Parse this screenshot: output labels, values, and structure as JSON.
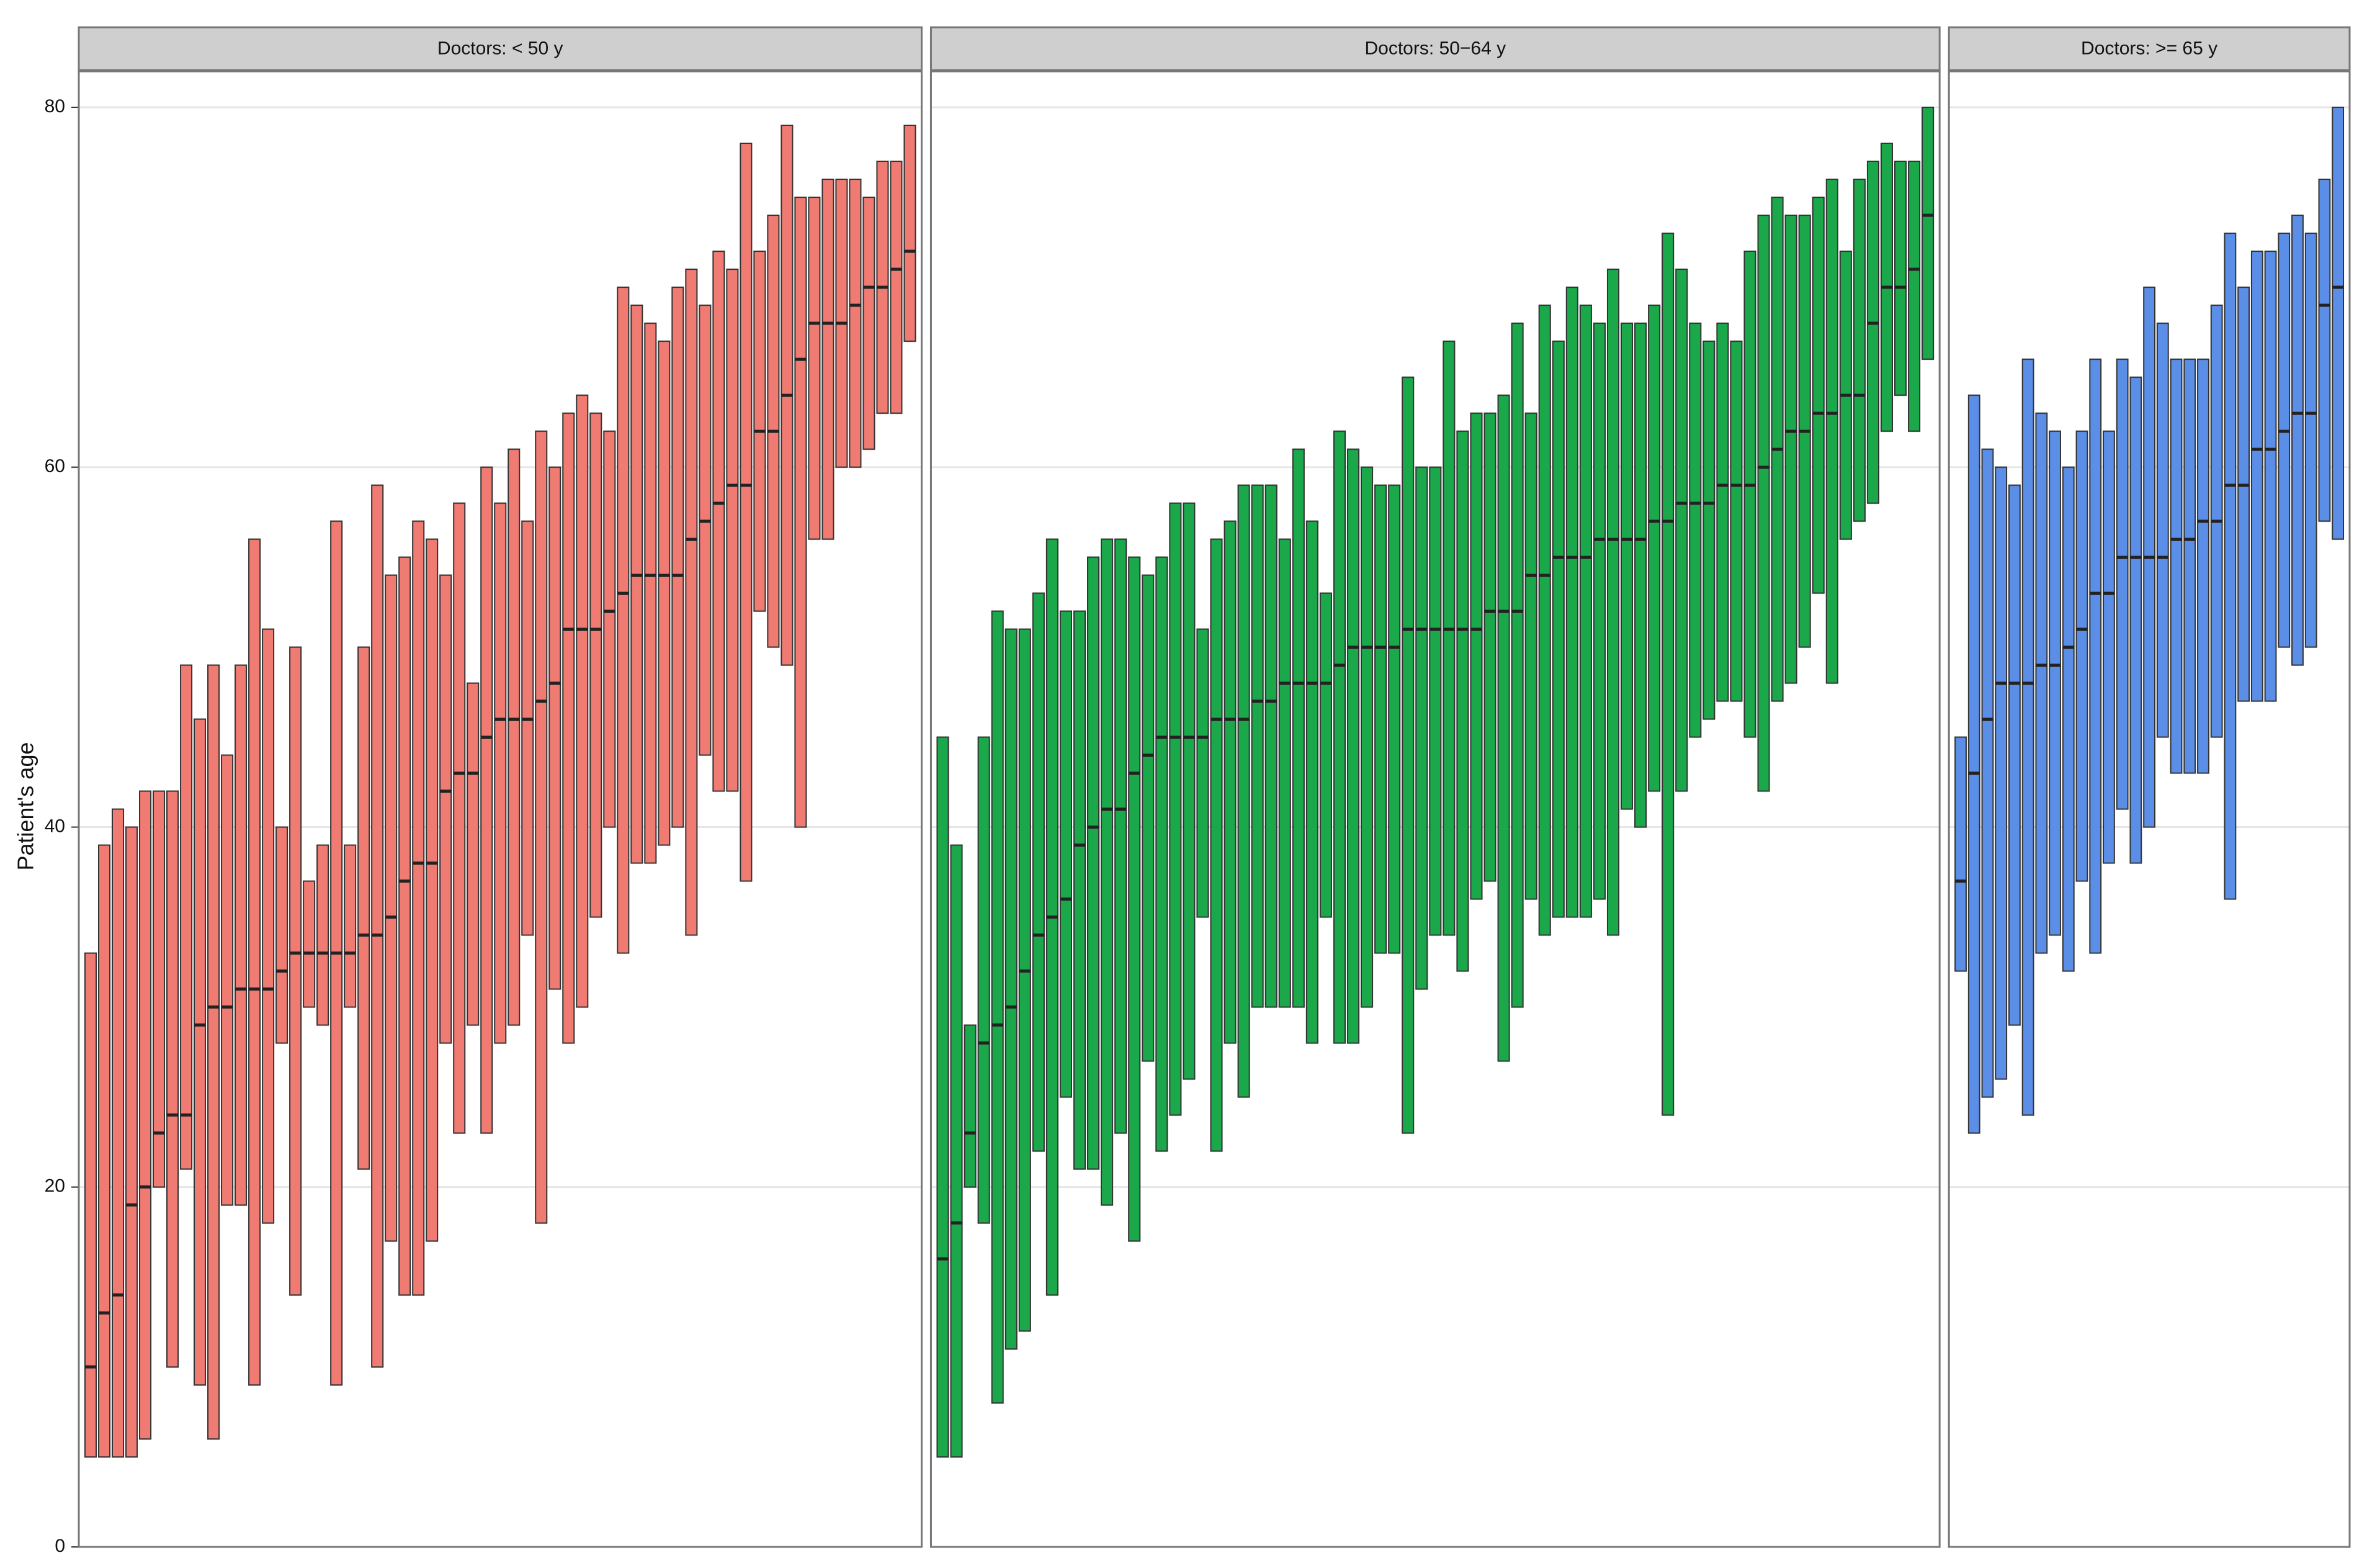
{
  "chart_data": {
    "type": "range-bar",
    "ylabel": "Patient's age",
    "ylim": [
      0,
      82
    ],
    "yticks": [
      0,
      20,
      40,
      60,
      80
    ],
    "grid": true,
    "panels": [
      {
        "title": "Doctors: < 50 y",
        "color": "#f07b72",
        "low": [
          5,
          5,
          5,
          5,
          6,
          20,
          10,
          21,
          9,
          6,
          19,
          19,
          9,
          18,
          28,
          14,
          30,
          29,
          9,
          30,
          21,
          10,
          17,
          14,
          14,
          17,
          28,
          23,
          29,
          23,
          28,
          29,
          34,
          18,
          31,
          28,
          30,
          35,
          40,
          33,
          38,
          38,
          39,
          40,
          34,
          44,
          42,
          42,
          37,
          52,
          50,
          49,
          40,
          56,
          56,
          60,
          60,
          61,
          63,
          63,
          67
        ],
        "high": [
          33,
          39,
          41,
          40,
          42,
          42,
          42,
          49,
          46,
          49,
          44,
          49,
          56,
          51,
          40,
          50,
          37,
          39,
          57,
          39,
          50,
          59,
          54,
          55,
          57,
          56,
          54,
          58,
          48,
          60,
          58,
          61,
          57,
          62,
          60,
          63,
          64,
          63,
          62,
          70,
          69,
          68,
          67,
          70,
          71,
          69,
          72,
          71,
          78,
          72,
          74,
          79,
          75,
          75,
          76,
          76,
          76,
          75,
          77,
          77,
          79
        ],
        "median": [
          10,
          13,
          14,
          19,
          20,
          23,
          24,
          24,
          29,
          30,
          30,
          31,
          31,
          31,
          32,
          33,
          33,
          33,
          33,
          33,
          34,
          34,
          35,
          37,
          38,
          38,
          42,
          43,
          43,
          45,
          46,
          46,
          46,
          47,
          48,
          51,
          51,
          51,
          52,
          53,
          54,
          54,
          54,
          54,
          56,
          57,
          58,
          59,
          59,
          62,
          62,
          64,
          66,
          68,
          68,
          68,
          69,
          70,
          70,
          71,
          72
        ]
      },
      {
        "title": "Doctors: 50−64 y",
        "color": "#1aa84a",
        "low": [
          5,
          5,
          20,
          18,
          8,
          11,
          12,
          22,
          14,
          25,
          21,
          21,
          19,
          23,
          17,
          27,
          22,
          24,
          26,
          35,
          22,
          28,
          25,
          30,
          30,
          30,
          30,
          28,
          35,
          28,
          28,
          30,
          33,
          33,
          23,
          31,
          34,
          34,
          32,
          36,
          37,
          27,
          30,
          36,
          34,
          35,
          35,
          35,
          36,
          34,
          41,
          40,
          42,
          24,
          42,
          45,
          46,
          47,
          47,
          45,
          42,
          47,
          48,
          50,
          53,
          48,
          56,
          57,
          58,
          62,
          64,
          62,
          66
        ],
        "high": [
          45,
          39,
          29,
          45,
          52,
          51,
          51,
          53,
          56,
          52,
          52,
          55,
          56,
          56,
          55,
          54,
          55,
          58,
          58,
          51,
          56,
          57,
          59,
          59,
          59,
          56,
          61,
          57,
          53,
          62,
          61,
          60,
          59,
          59,
          65,
          60,
          60,
          67,
          62,
          63,
          63,
          64,
          68,
          63,
          69,
          67,
          70,
          69,
          68,
          71,
          68,
          68,
          69,
          73,
          71,
          68,
          67,
          68,
          67,
          72,
          74,
          75,
          74,
          74,
          75,
          76,
          72,
          76,
          77,
          78,
          77,
          77,
          80
        ],
        "median": [
          16,
          18,
          23,
          28,
          29,
          30,
          32,
          34,
          35,
          36,
          39,
          40,
          41,
          41,
          43,
          44,
          45,
          45,
          45,
          45,
          46,
          46,
          46,
          47,
          47,
          48,
          48,
          48,
          48,
          49,
          50,
          50,
          50,
          50,
          51,
          51,
          51,
          51,
          51,
          51,
          52,
          52,
          52,
          54,
          54,
          55,
          55,
          55,
          56,
          56,
          56,
          56,
          57,
          57,
          58,
          58,
          58,
          59,
          59,
          59,
          60,
          61,
          62,
          62,
          63,
          63,
          64,
          64,
          68,
          70,
          70,
          71,
          74
        ]
      },
      {
        "title": "Doctors: >= 65 y",
        "color": "#5b8ee6",
        "low": [
          32,
          23,
          25,
          26,
          29,
          24,
          33,
          34,
          32,
          37,
          33,
          38,
          41,
          38,
          40,
          45,
          43,
          43,
          43,
          45,
          36,
          47,
          47,
          47,
          50,
          49,
          50,
          57,
          56
        ],
        "high": [
          45,
          64,
          61,
          60,
          59,
          66,
          63,
          62,
          60,
          62,
          66,
          62,
          66,
          65,
          70,
          68,
          66,
          66,
          66,
          69,
          73,
          70,
          72,
          72,
          73,
          74,
          73,
          76,
          80
        ],
        "median": [
          37,
          43,
          46,
          48,
          48,
          48,
          49,
          49,
          50,
          51,
          53,
          53,
          55,
          55,
          55,
          55,
          56,
          56,
          57,
          57,
          59,
          59,
          61,
          61,
          62,
          63,
          63,
          69,
          70
        ]
      }
    ]
  }
}
